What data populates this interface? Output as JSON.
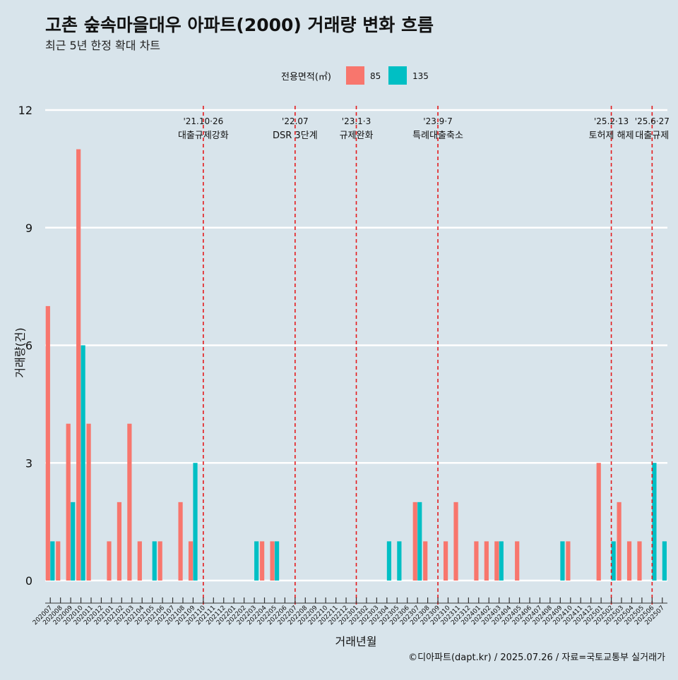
{
  "chart_data": {
    "type": "bar",
    "title": "고촌 숲속마을대우 아파트(2000) 거래량 변화 흐름",
    "subtitle": "최근 5년 한정 확대 차트",
    "xlabel": "거래년월",
    "ylabel": "거래량(건)",
    "ylim": [
      0,
      12
    ],
    "yticks": [
      0,
      3,
      6,
      9,
      12
    ],
    "grid": true,
    "legend": {
      "title": "전용면적(㎡)",
      "position": "top"
    },
    "caption": "©디아파트(dapt.kr) / 2025.07.26 / 자료=국토교통부 실거래가",
    "categories": [
      "202007",
      "202008",
      "202009",
      "202010",
      "202011",
      "202012",
      "202101",
      "202102",
      "202103",
      "202104",
      "202105",
      "202106",
      "202107",
      "202108",
      "202109",
      "202110",
      "202111",
      "202112",
      "202201",
      "202202",
      "202203",
      "202204",
      "202205",
      "202206",
      "202207",
      "202208",
      "202209",
      "202210",
      "202211",
      "202212",
      "202301",
      "202302",
      "202303",
      "202304",
      "202305",
      "202306",
      "202307",
      "202308",
      "202309",
      "202310",
      "202311",
      "202312",
      "202401",
      "202402",
      "202403",
      "202404",
      "202405",
      "202406",
      "202407",
      "202408",
      "202409",
      "202410",
      "202411",
      "202412",
      "202501",
      "202502",
      "202503",
      "202504",
      "202505",
      "202506",
      "202507"
    ],
    "series": [
      {
        "name": "85",
        "color": "#f8766d",
        "values": [
          7,
          1,
          4,
          11,
          4,
          0,
          1,
          2,
          4,
          1,
          0,
          1,
          0,
          2,
          1,
          0,
          0,
          0,
          0,
          0,
          0,
          1,
          1,
          0,
          0,
          0,
          0,
          0,
          0,
          0,
          0,
          0,
          0,
          0,
          0,
          0,
          2,
          1,
          0,
          1,
          2,
          0,
          1,
          1,
          1,
          0,
          1,
          0,
          0,
          0,
          0,
          1,
          0,
          0,
          3,
          0,
          2,
          1,
          1,
          0,
          0
        ]
      },
      {
        "name": "135",
        "color": "#00bfc4",
        "values": [
          1,
          0,
          2,
          6,
          0,
          0,
          0,
          0,
          0,
          0,
          1,
          0,
          0,
          0,
          3,
          0,
          0,
          0,
          0,
          0,
          1,
          0,
          1,
          0,
          0,
          0,
          0,
          0,
          0,
          0,
          0,
          0,
          0,
          1,
          1,
          0,
          2,
          0,
          0,
          0,
          0,
          0,
          0,
          0,
          1,
          0,
          0,
          0,
          0,
          0,
          1,
          0,
          0,
          0,
          0,
          1,
          0,
          0,
          0,
          3,
          1
        ]
      }
    ],
    "annotations": [
      {
        "date": "'21.10·26",
        "label": "대출규제강화",
        "category": "202110"
      },
      {
        "date": "'22.07",
        "label": "DSR 3단계",
        "category": "202207"
      },
      {
        "date": "'23.1·3",
        "label": "규제완화",
        "category": "202301"
      },
      {
        "date": "'23.9·7",
        "label": "특례대출축소",
        "category": "202309"
      },
      {
        "date": "'25.2·13",
        "label": "토허제 해제",
        "category": "202502"
      },
      {
        "date": "'25.6·27",
        "label": "대출규제",
        "category": "202506"
      }
    ]
  }
}
